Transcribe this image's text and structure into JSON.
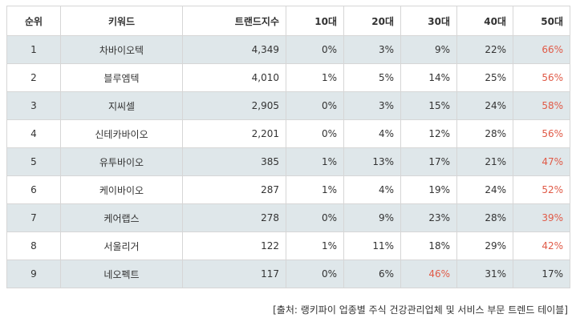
{
  "table": {
    "headers": [
      "순위",
      "키워드",
      "트랜드지수",
      "10대",
      "20대",
      "30대",
      "40대",
      "50대"
    ],
    "rows": [
      [
        "1",
        "차바이오텍",
        "4,349",
        "0%",
        "3%",
        "9%",
        "22%",
        "66%"
      ],
      [
        "2",
        "블루엠텍",
        "4,010",
        "1%",
        "5%",
        "14%",
        "25%",
        "56%"
      ],
      [
        "3",
        "지씨셀",
        "2,905",
        "0%",
        "3%",
        "15%",
        "24%",
        "58%"
      ],
      [
        "4",
        "신테카바이오",
        "2,201",
        "0%",
        "4%",
        "12%",
        "28%",
        "56%"
      ],
      [
        "5",
        "유투바이오",
        "385",
        "1%",
        "13%",
        "17%",
        "21%",
        "47%"
      ],
      [
        "6",
        "케이바이오",
        "287",
        "1%",
        "4%",
        "19%",
        "24%",
        "52%"
      ],
      [
        "7",
        "케어랩스",
        "278",
        "0%",
        "9%",
        "23%",
        "28%",
        "39%"
      ],
      [
        "8",
        "서울리거",
        "122",
        "1%",
        "11%",
        "18%",
        "29%",
        "42%"
      ],
      [
        "9",
        "네오펙트",
        "117",
        "0%",
        "6%",
        "46%",
        "31%",
        "17%"
      ]
    ],
    "highlight": [
      [
        0,
        7
      ],
      [
        1,
        7
      ],
      [
        2,
        7
      ],
      [
        3,
        7
      ],
      [
        4,
        7
      ],
      [
        5,
        7
      ],
      [
        6,
        7
      ],
      [
        7,
        7
      ],
      [
        8,
        5
      ]
    ],
    "highlight_color": "#e05a47",
    "stripe_color": "#dfe7ea"
  },
  "caption": "[출처: 랭키파이 업종별 주식 건강관리업체 및 서비스 부문 트렌드 테이블]"
}
